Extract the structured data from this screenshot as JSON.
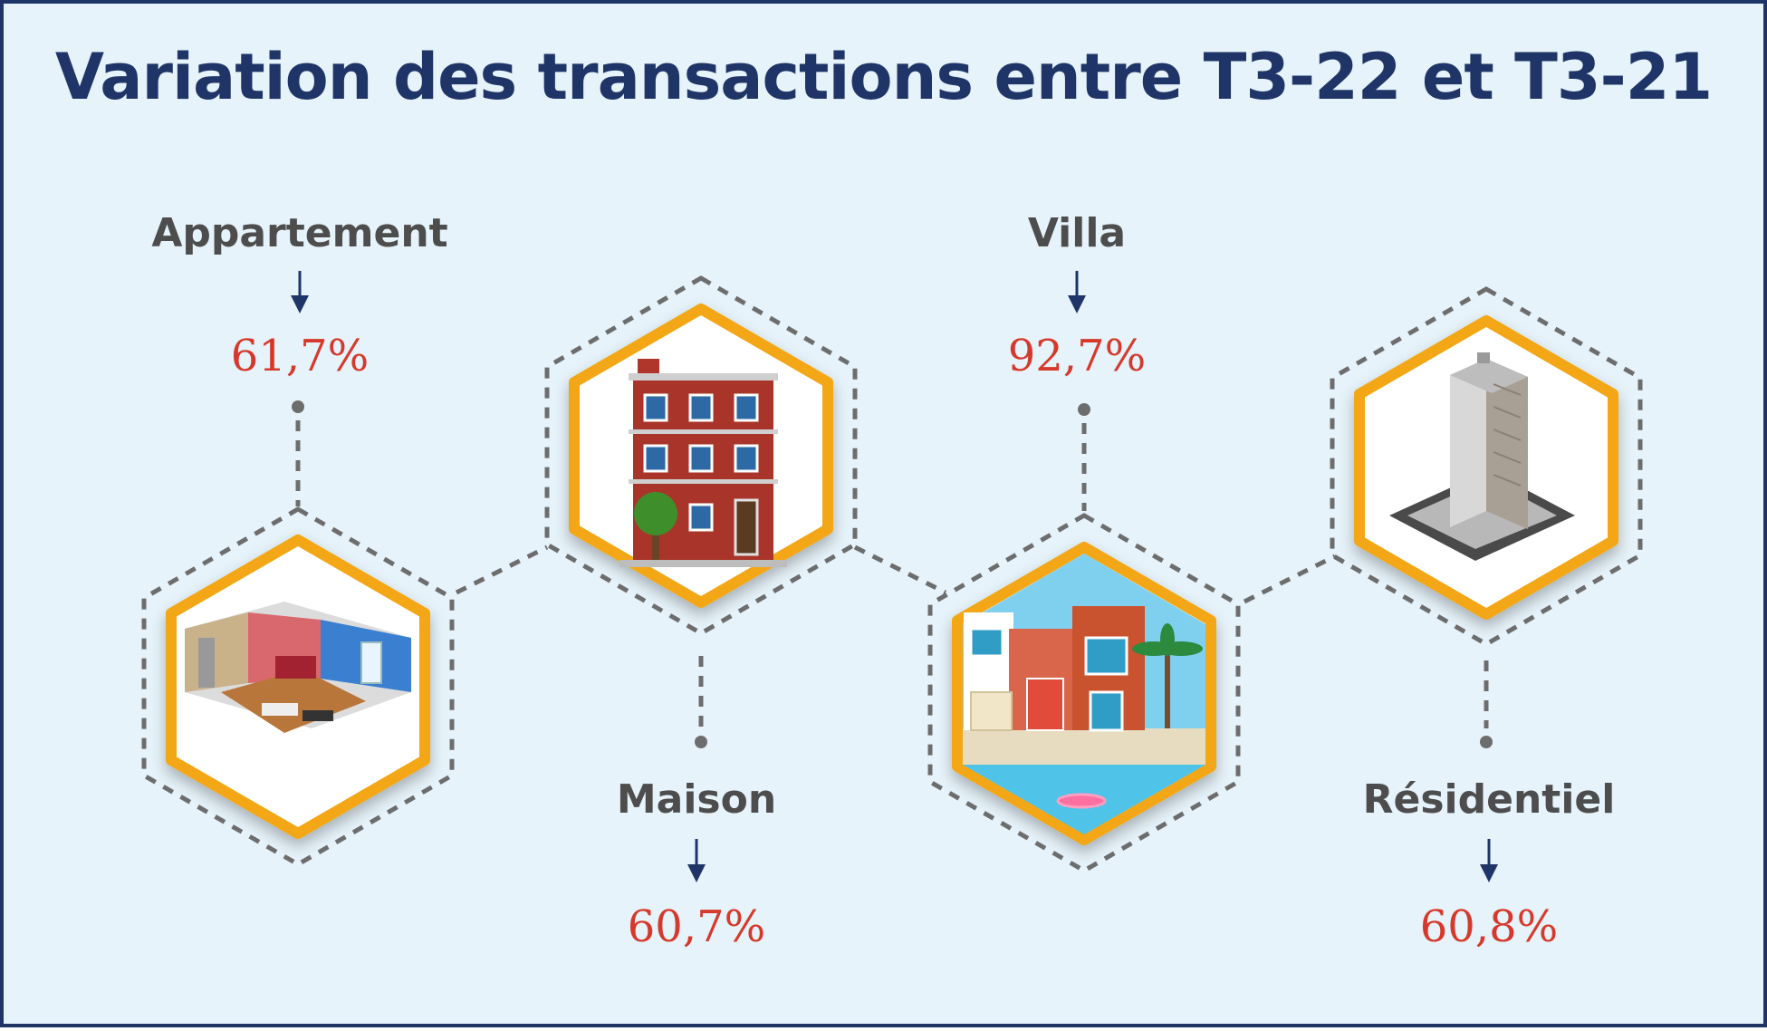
{
  "title": "Variation des transactions entre T3-22 et T3-21",
  "colors": {
    "frame": "#1f3567",
    "background": "#e6f3fa",
    "title": "#1f3567",
    "category_label": "#4d4d4d",
    "value": "#d6392b",
    "hexagon_border": "#f3a712",
    "dashed_line": "#6d6d6d",
    "arrow": "#1f3567"
  },
  "items": [
    {
      "label": "Appartement",
      "value": "61,7%",
      "icon": "apartment-interior-icon"
    },
    {
      "label": "Maison",
      "value": "60,7%",
      "icon": "brick-house-icon"
    },
    {
      "label": "Villa",
      "value": "92,7%",
      "icon": "villa-pool-icon"
    },
    {
      "label": "Résidentiel",
      "value": "60,8%",
      "icon": "residential-tower-icon"
    }
  ]
}
